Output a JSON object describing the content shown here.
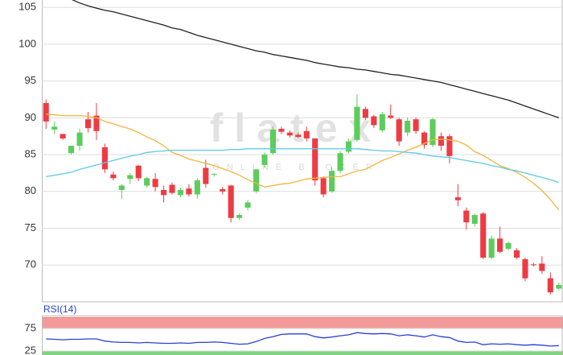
{
  "chart_data": [
    {
      "type": "candlestick",
      "watermark": {
        "brand": "flatex",
        "tagline": "ONLINE BROKER"
      },
      "ylim": [
        65,
        106
      ],
      "yticks": [
        70,
        75,
        80,
        85,
        90,
        95,
        100,
        105
      ],
      "grid": true,
      "up_color": "#5ccc5c",
      "down_color": "#ee3b43",
      "open": [
        92,
        88.4,
        87.8,
        85.2,
        86.2,
        89.8,
        90.3,
        86,
        82.3,
        80.2,
        81.7,
        83.5,
        80.8,
        81.7,
        80.2,
        80.9,
        79.5,
        80.4,
        79.6,
        83.2,
        82.3,
        80.3,
        80.8,
        76.4,
        77.8,
        80,
        83.6,
        85.2,
        88.5,
        88,
        87.7,
        88.2,
        87.2,
        81.8,
        80,
        82.8,
        85.4,
        87,
        91.2,
        90.2,
        88.3,
        90.3,
        89.8,
        88,
        89.8,
        88,
        86.3,
        87.5,
        87.5,
        79.2,
        77.4,
        75.6,
        77,
        71,
        73.6,
        72.2,
        72,
        70.8,
        70.1,
        70.2,
        68.2,
        66.8
      ],
      "high": [
        92.5,
        89.5,
        87.8,
        86.2,
        88.5,
        90.8,
        92,
        86.5,
        82.7,
        81,
        82.5,
        83.6,
        82,
        82.5,
        80.8,
        81.2,
        80.5,
        81,
        81.8,
        84.3,
        82.5,
        80.6,
        80.9,
        77,
        78.8,
        83,
        85.3,
        88.8,
        88.8,
        88.3,
        88,
        88.8,
        87.2,
        82,
        83.3,
        85.5,
        87.2,
        93.2,
        91.5,
        90.4,
        90.8,
        91.8,
        90,
        90,
        90,
        88.2,
        90,
        88,
        87.8,
        81,
        77.8,
        77,
        77.2,
        74,
        75.2,
        73.2,
        72.3,
        71,
        70.3,
        71.2,
        69,
        67.6
      ],
      "low": [
        88.5,
        87.8,
        87,
        85,
        85.5,
        88,
        87,
        82.5,
        81.5,
        79,
        81,
        81.4,
        80.5,
        80,
        78.5,
        79.6,
        79.2,
        79.3,
        79,
        80.5,
        82,
        79.6,
        75.8,
        76.1,
        77.4,
        79.8,
        83.2,
        85,
        87.8,
        87.3,
        87.3,
        86.8,
        80.8,
        79.2,
        79.8,
        82.5,
        85.2,
        86.8,
        89.7,
        88.6,
        88,
        89.8,
        86.2,
        87.5,
        87.8,
        85.8,
        86,
        85.5,
        83.8,
        78,
        74.8,
        75.2,
        70.8,
        70.8,
        71.6,
        72,
        70.8,
        67.8,
        69.8,
        68.8,
        66,
        66.6
      ],
      "close": [
        89.5,
        88.8,
        87.2,
        86.2,
        88,
        88.6,
        88.2,
        83,
        81.8,
        80.8,
        82.2,
        81.8,
        81.8,
        80.6,
        79.5,
        79.8,
        80.2,
        79.6,
        81.5,
        81,
        82.4,
        80,
        76.4,
        76.8,
        78.5,
        83,
        85,
        88.4,
        88.1,
        87.6,
        87.4,
        87.2,
        81.5,
        79.6,
        82.8,
        85.2,
        86.8,
        91.5,
        90,
        89,
        90.5,
        90,
        86.8,
        89.6,
        88.2,
        86.3,
        89.8,
        86.2,
        84.8,
        78.8,
        75.8,
        76.8,
        71,
        73.6,
        71.8,
        73,
        71,
        68.2,
        70,
        69.2,
        66.3,
        67.3
      ],
      "series": [
        {
          "color": "#222222",
          "values": [
            null,
            null,
            null,
            106.1,
            105.6,
            105.2,
            104.9,
            104.6,
            104.4,
            104.1,
            103.8,
            103.5,
            103.2,
            102.9,
            102.6,
            102.2,
            102,
            101.6,
            101.2,
            100.9,
            100.6,
            100.3,
            100,
            99.7,
            99.4,
            99.1,
            98.9,
            98.6,
            98.4,
            98.2,
            98,
            97.8,
            97.5,
            97.3,
            97.1,
            96.9,
            96.8,
            96.6,
            96.5,
            96.3,
            96.1,
            95.9,
            95.8,
            95.6,
            95.4,
            95.2,
            95,
            94.8,
            94.5,
            94.2,
            93.9,
            93.6,
            93.3,
            93,
            92.7,
            92.4,
            92,
            91.6,
            91.2,
            90.8,
            90.4,
            90
          ]
        },
        {
          "color": "#f4b43c",
          "values": [
            90.5,
            90.4,
            90.3,
            90.3,
            90.3,
            90.2,
            90,
            89.5,
            89.2,
            88.8,
            88.5,
            88,
            87.4,
            86.9,
            86.2,
            85.3,
            84.9,
            84.4,
            84.1,
            83.8,
            83.5,
            83.1,
            82.7,
            82.2,
            81.6,
            81.1,
            80.6,
            80.8,
            81,
            81.1,
            81.4,
            81.7,
            81.8,
            81.9,
            82,
            82,
            82.4,
            82.8,
            83,
            83.6,
            84.2,
            84.6,
            85.1,
            85.6,
            86,
            86.5,
            87,
            87.1,
            87,
            86.8,
            86.3,
            85.4,
            84.9,
            84.2,
            83.5,
            83.1,
            82.6,
            81.9,
            81.1,
            80.1,
            78.9,
            77.5
          ]
        },
        {
          "color": "#5ccbe8",
          "values": [
            82,
            82.2,
            82.4,
            82.6,
            83,
            83.3,
            83.6,
            83.9,
            84.2,
            84.5,
            84.8,
            85,
            85.3,
            85.4,
            85.5,
            85.6,
            85.6,
            85.6,
            85.6,
            85.6,
            85.6,
            85.6,
            85.7,
            85.7,
            85.8,
            85.8,
            85.8,
            85.8,
            85.8,
            85.8,
            85.8,
            85.8,
            85.8,
            85.8,
            85.8,
            85.8,
            85.8,
            85.8,
            85.7,
            85.6,
            85.5,
            85.5,
            85.4,
            85.3,
            85.2,
            85,
            84.8,
            84.7,
            84.6,
            84.4,
            84.2,
            84,
            83.8,
            83.5,
            83.3,
            83,
            82.8,
            82.5,
            82.2,
            81.9,
            81.6,
            81.2
          ]
        }
      ]
    },
    {
      "type": "line",
      "title": "RSI(14)",
      "ylim": [
        16,
        104
      ],
      "yticks": [
        25,
        75
      ],
      "grid": true,
      "overbought_band": [
        75,
        100
      ],
      "oversold_band": [
        0,
        25
      ],
      "band_colors": [
        "#f59a9a",
        "#7fd47f"
      ],
      "series": [
        {
          "color": "#2a3fd6",
          "values": [
            52,
            51,
            50,
            51,
            51,
            52,
            52,
            47,
            45,
            44,
            44,
            43,
            44,
            43,
            42,
            42,
            43,
            42,
            44,
            44,
            45,
            44,
            42,
            40,
            41,
            46,
            53,
            57,
            62,
            63,
            63,
            63,
            57,
            54,
            56,
            59,
            61,
            66,
            64,
            63,
            64,
            63,
            59,
            61,
            59,
            56,
            61,
            57,
            55,
            47,
            44,
            45,
            39,
            41,
            40,
            41,
            39,
            38,
            39,
            38,
            36,
            37
          ]
        }
      ]
    }
  ]
}
